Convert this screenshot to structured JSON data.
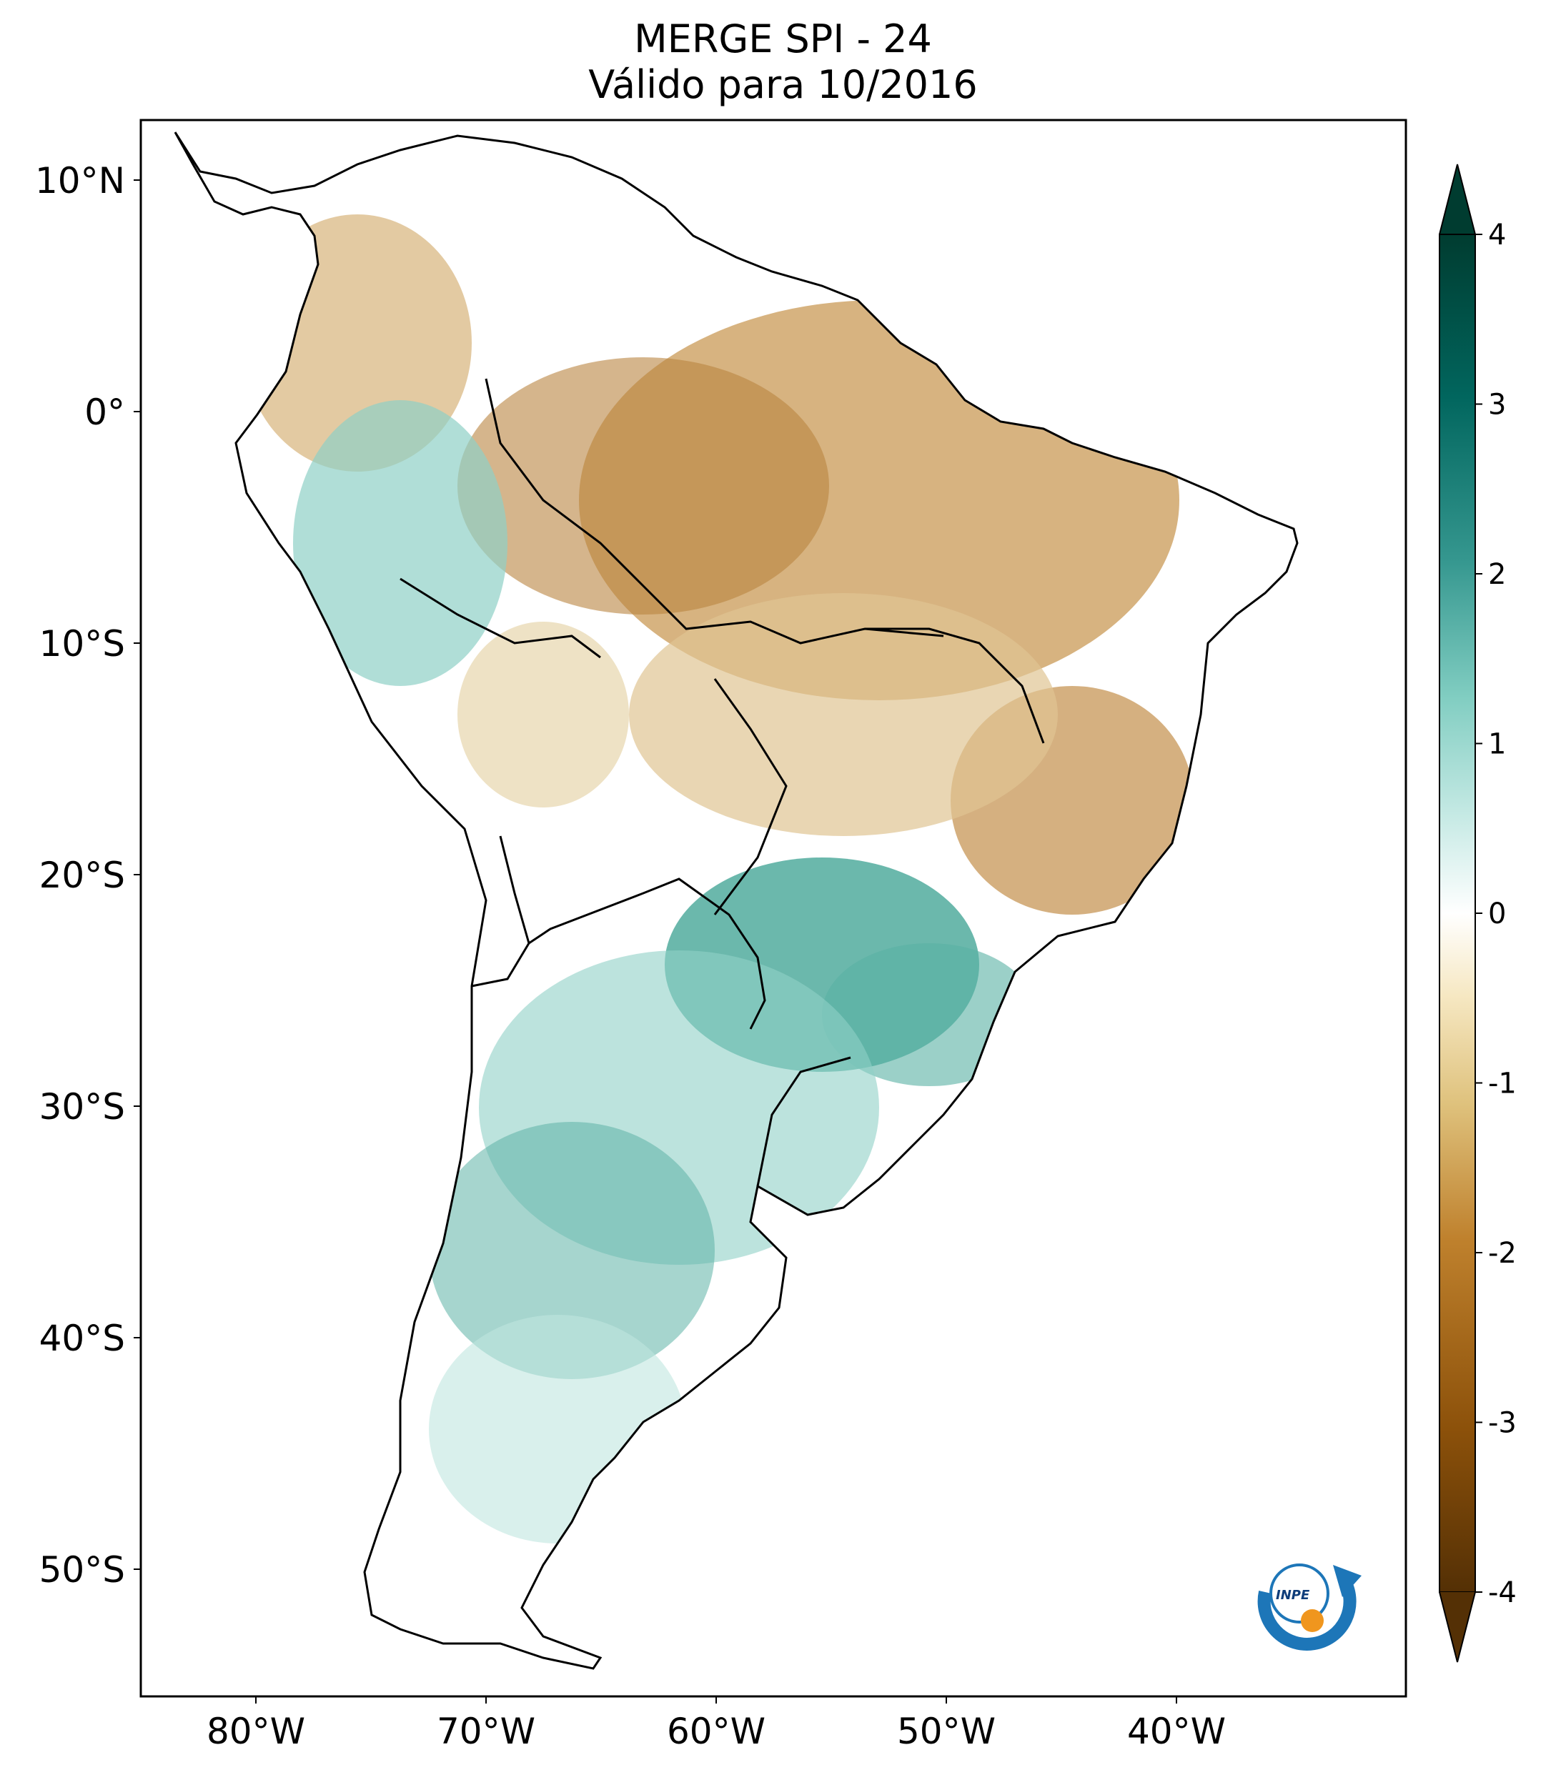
{
  "title": {
    "line1": "MERGE   SPI - 24",
    "line2": "Válido para 10/2016"
  },
  "map": {
    "lat_labels": [
      "10°N",
      "0°",
      "10°S",
      "20°S",
      "30°S",
      "40°S",
      "50°S"
    ],
    "lon_labels": [
      "80°W",
      "70°W",
      "60°W",
      "50°W",
      "40°W"
    ],
    "extent": {
      "lon_min": -85,
      "lon_max": -30,
      "lat_min": -56,
      "lat_max": 13
    }
  },
  "colorbar": {
    "ticks": [
      "4",
      "3",
      "2",
      "1",
      "0",
      "-1",
      "-2",
      "-3",
      "-4"
    ],
    "range": [
      -4,
      4
    ],
    "extend": "both",
    "colormap": "brown-white-teal",
    "colors": [
      "#543005",
      "#8c510a",
      "#bf812d",
      "#dfc27d",
      "#f6e8c3",
      "#ffffff",
      "#c7eae5",
      "#80cdc1",
      "#35978f",
      "#01665e",
      "#003c30"
    ]
  },
  "logo": {
    "text": "INPE"
  }
}
